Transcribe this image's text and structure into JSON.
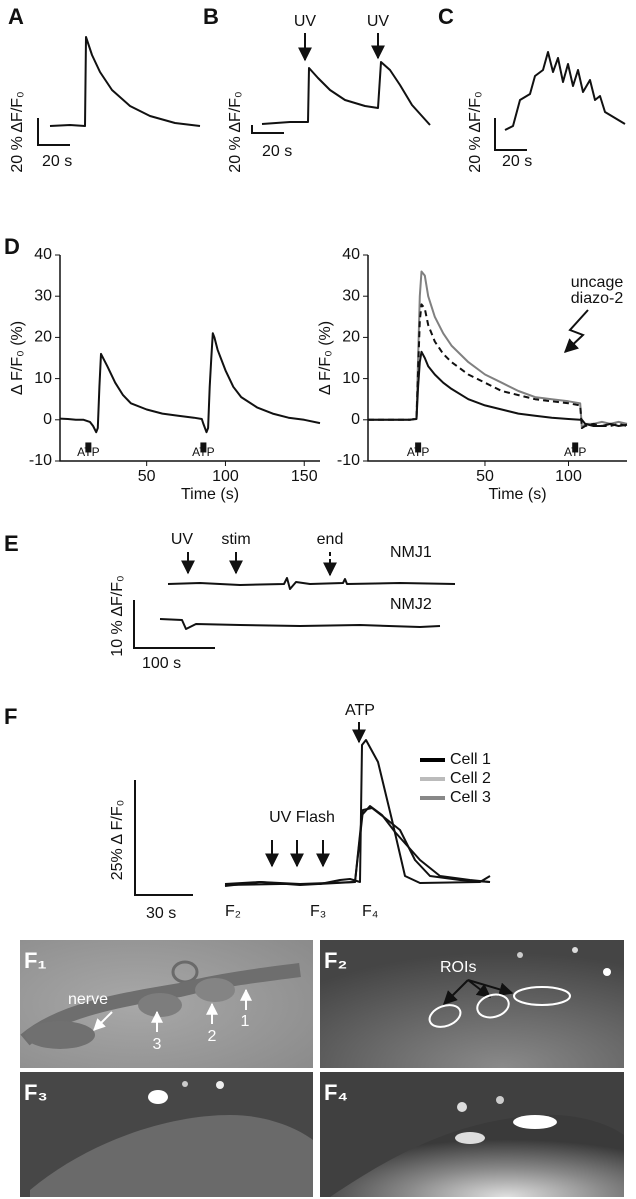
{
  "panel_a": {
    "label": "A",
    "y_scale": "20 % ΔF/F₀",
    "x_scale": "20 s"
  },
  "panel_b": {
    "label": "B",
    "annotations": [
      "UV",
      "UV"
    ],
    "y_scale": "20 % ΔF/F₀",
    "x_scale": "20 s"
  },
  "panel_c": {
    "label": "C",
    "y_scale": "20 % ΔF/F₀",
    "x_scale": "20 s"
  },
  "panel_d": {
    "label": "D"
  },
  "chart_data": [
    {
      "type": "line",
      "y_label": "Δ F/F₀ (%)",
      "x_label": "Time (s)",
      "xlim": [
        -5,
        160
      ],
      "xticks": [
        50,
        100,
        150
      ],
      "ylim": [
        -10,
        40
      ],
      "yticks": [
        -10,
        0,
        10,
        20,
        30,
        40
      ],
      "stimuli": [
        {
          "x": 13,
          "label": "ATP"
        },
        {
          "x": 86,
          "label": "ATP"
        }
      ],
      "x": [
        -5,
        0,
        5,
        10,
        14,
        16,
        18,
        19,
        20,
        21,
        25,
        30,
        35,
        40,
        50,
        60,
        70,
        80,
        85,
        86,
        88,
        89,
        90,
        91,
        92,
        93,
        95,
        100,
        105,
        110,
        120,
        130,
        140,
        150,
        160
      ],
      "series": [
        {
          "color": "#111111",
          "values": [
            0.3,
            0.2,
            0,
            0,
            -0.5,
            -1.5,
            -3,
            -2,
            8,
            16,
            13,
            9,
            6,
            4,
            2.5,
            1.5,
            1,
            0.5,
            0.2,
            -1,
            -3,
            -2,
            8,
            15,
            21,
            20,
            17,
            12,
            8,
            5.5,
            3,
            1.5,
            0.5,
            0,
            -0.8
          ]
        }
      ]
    },
    {
      "type": "line",
      "y_label": "Δ F/F₀ (%)",
      "x_label": "Time (s)",
      "xlim": [
        -20,
        135
      ],
      "xticks": [
        50,
        100
      ],
      "ylim": [
        -10,
        40
      ],
      "yticks": [
        -10,
        0,
        10,
        20,
        30,
        40
      ],
      "stimuli": [
        {
          "x": 10,
          "label": "ATP"
        },
        {
          "x": 104,
          "label": "ATP"
        }
      ],
      "annotation": [
        "uncage",
        "diazo-2"
      ],
      "x": [
        -20,
        -10,
        0,
        5,
        9,
        10,
        11,
        12,
        14,
        16,
        20,
        25,
        30,
        40,
        50,
        60,
        70,
        80,
        90,
        100,
        107,
        108,
        110,
        115,
        120,
        125,
        130,
        135
      ],
      "series": [
        {
          "color": "#808080",
          "dashed": false,
          "values": [
            0,
            0,
            0,
            0,
            0.3,
            15,
            30,
            36,
            35,
            30,
            25,
            21,
            18,
            14,
            11,
            9,
            7,
            5.5,
            5,
            4.5,
            4,
            -2,
            -1,
            -1,
            -0.5,
            -1,
            -0.5,
            -1
          ]
        },
        {
          "color": "#111111",
          "dashed": true,
          "values": [
            0,
            0,
            0,
            0,
            0.3,
            12,
            24,
            28,
            27,
            23,
            19,
            16,
            14,
            11,
            9,
            7,
            6,
            5,
            4.5,
            4,
            3.5,
            -2,
            -1.5,
            -1,
            -1.5,
            -1.5,
            -1,
            -1.5
          ]
        },
        {
          "color": "#111111",
          "dashed": false,
          "values": [
            0,
            0,
            0,
            0,
            0.2,
            8,
            14,
            16.5,
            15,
            13,
            11,
            9,
            7.5,
            5,
            3.5,
            2.5,
            1.5,
            1,
            0.5,
            0.2,
            0,
            0,
            -1,
            -1.5,
            -1.5,
            -1,
            -1.5,
            -1.2
          ]
        }
      ]
    }
  ],
  "panel_e": {
    "label": "E",
    "annotations": [
      "UV",
      "stim",
      "end"
    ],
    "traces": [
      "NMJ1",
      "NMJ2"
    ],
    "y_scale": "10 % ΔF/F₀",
    "x_scale": "100 s"
  },
  "panel_f": {
    "label": "F",
    "stimulus": "ATP",
    "flash": "UV Flash",
    "legend": [
      {
        "name": "Cell 1",
        "color": "#000000"
      },
      {
        "name": "Cell 2",
        "color": "#bbbbbb"
      },
      {
        "name": "Cell 3",
        "color": "#888888"
      }
    ],
    "frames": [
      "F₂",
      "F₃",
      "F₄"
    ],
    "y_scale": "25% Δ F/F₀",
    "x_scale": "30 s"
  },
  "images": [
    {
      "label": "F₁",
      "annotations": [
        "nerve",
        "3",
        "2",
        "1"
      ]
    },
    {
      "label": "F₂",
      "annotations": [
        "ROIs"
      ]
    },
    {
      "label": "F₃"
    },
    {
      "label": "F₄"
    }
  ]
}
